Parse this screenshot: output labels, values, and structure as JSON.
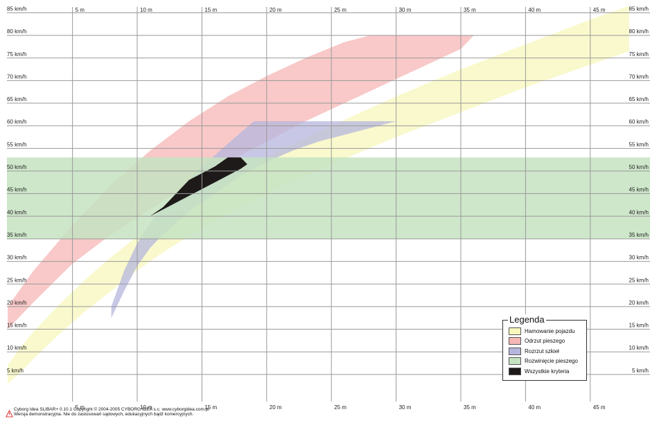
{
  "chart_data": {
    "type": "area",
    "x_ticks": [
      "5 m",
      "10 m",
      "15 m",
      "20 m",
      "25 m",
      "30 m",
      "35 m",
      "40 m",
      "45 m"
    ],
    "y_ticks": [
      "5 km/h",
      "10 km/h",
      "15 km/h",
      "20 km/h",
      "25 km/h",
      "30 km/h",
      "35 km/h",
      "40 km/h",
      "45 km/h",
      "50 km/h",
      "55 km/h",
      "60 km/h",
      "65 km/h",
      "70 km/h",
      "75 km/h",
      "80 km/h",
      "85 km/h"
    ],
    "xlim": [
      0,
      48
    ],
    "ylim": [
      0,
      88
    ],
    "grid": true,
    "legend_title": "Legenda",
    "legend_position": "bottom-right",
    "series": [
      {
        "name": "Hamowanie pojazdu",
        "color": "#f7f7bc",
        "upper": [
          [
            0,
            7
          ],
          [
            1,
            11
          ],
          [
            2,
            14.5
          ],
          [
            4,
            20.5
          ],
          [
            6,
            26
          ],
          [
            8,
            31
          ],
          [
            10,
            35.5
          ],
          [
            12,
            39.5
          ],
          [
            15,
            45
          ],
          [
            18,
            50
          ],
          [
            21,
            54.5
          ],
          [
            25,
            60
          ],
          [
            30,
            66.5
          ],
          [
            35,
            72.5
          ],
          [
            40,
            78
          ],
          [
            45,
            83.5
          ],
          [
            48,
            86.5
          ]
        ],
        "lower": [
          [
            0,
            3
          ],
          [
            1,
            5.5
          ],
          [
            2,
            8.5
          ],
          [
            4,
            14
          ],
          [
            6,
            19
          ],
          [
            8,
            23.5
          ],
          [
            10,
            28
          ],
          [
            12,
            32
          ],
          [
            15,
            37.5
          ],
          [
            18,
            42
          ],
          [
            21,
            46.5
          ],
          [
            25,
            51.5
          ],
          [
            30,
            57.5
          ],
          [
            35,
            63
          ],
          [
            40,
            68.5
          ],
          [
            45,
            73.5
          ],
          [
            48,
            76.5
          ]
        ]
      },
      {
        "name": "Odrzut pieszego",
        "color": "#f5b7b5",
        "upper": [
          [
            0,
            20
          ],
          [
            2,
            28
          ],
          [
            5,
            38
          ],
          [
            8,
            47
          ],
          [
            11,
            54.5
          ],
          [
            14,
            61
          ],
          [
            17,
            66.5
          ],
          [
            20,
            71
          ],
          [
            23,
            75
          ],
          [
            26,
            78.5
          ],
          [
            28,
            80
          ]
        ],
        "lower": [
          [
            0,
            15
          ],
          [
            2,
            21
          ],
          [
            5,
            29.5
          ],
          [
            8,
            36
          ],
          [
            11,
            41.5
          ],
          [
            14,
            47
          ],
          [
            17,
            52
          ],
          [
            20,
            56.5
          ],
          [
            23,
            61
          ],
          [
            26,
            65
          ],
          [
            29,
            69
          ],
          [
            32,
            73
          ],
          [
            35,
            77
          ],
          [
            36,
            80
          ]
        ]
      },
      {
        "name": "Rozrzut szkieł",
        "color": "#b5b5dd",
        "upper": [
          [
            8,
            20
          ],
          [
            9,
            28
          ],
          [
            10,
            34
          ],
          [
            11,
            38.5
          ],
          [
            12,
            42
          ],
          [
            13,
            45
          ],
          [
            14,
            48
          ],
          [
            15,
            51
          ],
          [
            16,
            53.5
          ],
          [
            17,
            56
          ],
          [
            18,
            58.5
          ],
          [
            19,
            61
          ],
          [
            30,
            61
          ]
        ],
        "lower": [
          [
            8,
            17.5
          ],
          [
            9,
            23.5
          ],
          [
            10,
            29
          ],
          [
            11,
            33
          ],
          [
            12,
            36
          ],
          [
            13,
            38.5
          ],
          [
            14,
            41
          ],
          [
            15,
            43
          ],
          [
            16,
            45
          ],
          [
            17,
            47
          ],
          [
            18,
            49
          ],
          [
            19,
            50.5
          ],
          [
            20,
            52
          ],
          [
            22,
            54.5
          ],
          [
            24,
            56.5
          ],
          [
            26,
            58
          ],
          [
            28,
            59.5
          ],
          [
            30,
            61
          ]
        ]
      },
      {
        "name": "Rozwinięcie pieszego",
        "color": "#c5e3c1",
        "ylim_band": [
          35,
          53
        ]
      },
      {
        "name": "Wszystkie kryteria",
        "color": "#1e1a1a",
        "upper": [
          [
            11,
            40
          ],
          [
            12,
            42
          ],
          [
            13,
            45
          ],
          [
            14,
            48
          ],
          [
            15,
            49.5
          ],
          [
            16,
            51
          ],
          [
            17,
            53
          ],
          [
            18,
            53
          ]
        ],
        "lower": [
          [
            11,
            40
          ],
          [
            12,
            41.5
          ],
          [
            13,
            43
          ],
          [
            14,
            44.5
          ],
          [
            15,
            46
          ],
          [
            16,
            47.5
          ],
          [
            17,
            49
          ],
          [
            18,
            50.5
          ],
          [
            18.5,
            51.5
          ]
        ]
      }
    ]
  },
  "footer": {
    "line1": "Cyborg Idea SLIBAR+ 0.10.1   Copyright © 2004-2005 CYBORG IDEA s.c.  www.cyborgidea.com.pl",
    "line2": "Wersja demonstracyjna. Nie do zastosowań sądowych, edukacyjnych bądź komercyjnych."
  }
}
